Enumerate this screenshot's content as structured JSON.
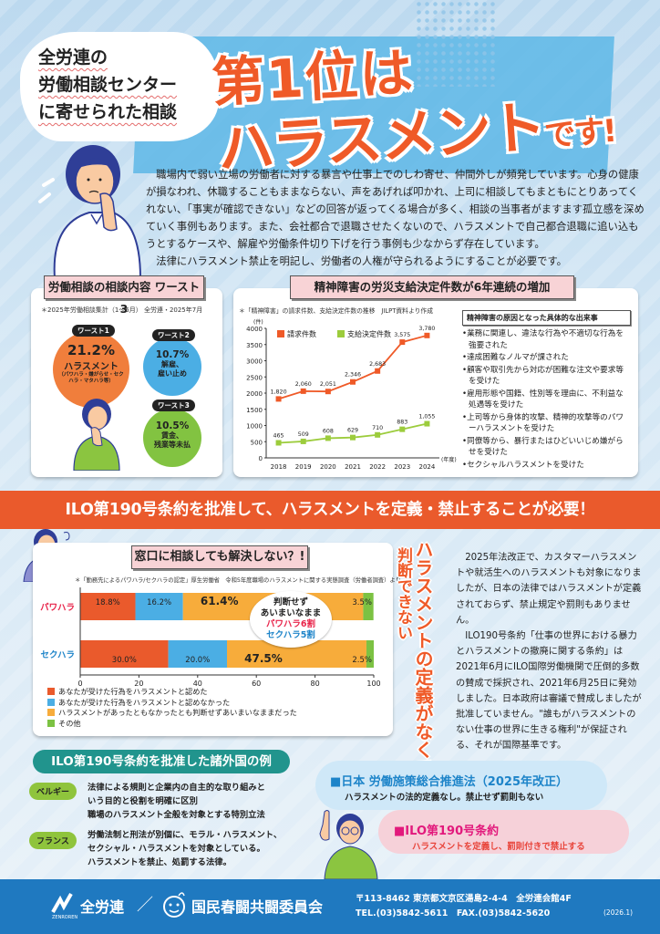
{
  "header": {
    "bubble_lines": [
      "全労連の",
      "労働相談センター",
      "に寄せられた相談"
    ],
    "title_line1": "第1位は",
    "title_line2_main": "ハラスメント",
    "title_line2_suffix": "です!"
  },
  "intro": {
    "paragraph1": "職場内で弱い立場の労働者に対する暴言や仕事上でのしわ寄せ、仲間外しが頻発しています。心身の健康が損なわれ、休職することもままならない、声をあげれば叩かれ、上司に相談してもまともにとりあってくれない、「事実が確認できない」などの回答が返ってくる場合が多く、相談の当事者がますます孤立感を深めていく事例もあります。また、会社都合で退職させたくないので、ハラスメントで自己都合退職に追い込もうとするケースや、解雇や労働条件切り下げを行う事例も少なからず存在しています。",
    "paragraph2": "法律にハラスメント禁止を明記し、労働者の人権が守られるようにすることが必要です。"
  },
  "worst3": {
    "title": "労働相談の相談内容 ワースト3",
    "note": "＊2025年労働相談集計（1〜6月） 全労連・2025年7月",
    "items": [
      {
        "badge": "ワースト1",
        "pct": "21.2%",
        "label": "ハラスメント",
        "detail": "（パワハラ・嫌がらせ・セクハラ・マタハラ等）",
        "color": "#f07e3c"
      },
      {
        "badge": "ワースト2",
        "pct": "10.7%",
        "label": "解雇、",
        "detail": "雇い止め",
        "color": "#4baee4"
      },
      {
        "badge": "ワースト3",
        "pct": "10.5%",
        "label": "賃金、",
        "detail": "残業等未払",
        "color": "#82c341"
      }
    ]
  },
  "mental": {
    "title": "精神障害の労災支給決定件数が6年連続の増加",
    "note": "＊「精神障害」の請求件数、支給決定件数の推移　JILPT資料より作成",
    "causes_title": "精神障害の原因となった具体的な出来事",
    "causes": [
      "•業務に関連し、違法な行為や不適切な行為を強要された",
      "•達成困難なノルマが課された",
      "•顧客や取引先から対応が困難な注文や要求等を受けた",
      "•雇用形態や国籍、性別等を理由に、不利益な処遇等を受けた",
      "•上司等から身体的攻撃、精神的攻撃等のパワーハラスメントを受けた",
      "•同僚等から、暴行またはひどいいじめ嫌がらせを受けた",
      "•セクシャルハラスメントを受けた"
    ]
  },
  "chart_data": [
    {
      "type": "line",
      "title": "精神障害の労災支給決定件数が6年連続の増加",
      "x": [
        "2018",
        "2019",
        "2020",
        "2021",
        "2022",
        "2023",
        "2024"
      ],
      "xlabel": "(年度)",
      "ylabel": "(件)",
      "ylim": [
        0,
        4000
      ],
      "yticks": [
        0,
        500,
        1000,
        1500,
        2000,
        2500,
        3000,
        3500,
        4000
      ],
      "grid": false,
      "legend_position": "top-left",
      "series": [
        {
          "name": "請求件数",
          "color": "#ef5a28",
          "values": [
            1820,
            2060,
            2051,
            2346,
            2683,
            3575,
            3780
          ],
          "labels": [
            "1,820",
            "2,060",
            "2,051",
            "2,346",
            "2,683",
            "3,575",
            "3,780"
          ]
        },
        {
          "name": "支給決定件数",
          "color": "#9ccc3c",
          "values": [
            465,
            509,
            608,
            629,
            710,
            883,
            1055
          ],
          "labels": [
            "465",
            "509",
            "608",
            "629",
            "710",
            "883",
            "1,055"
          ]
        }
      ]
    },
    {
      "type": "bar",
      "orientation": "horizontal-stacked",
      "title": "窓口に相談しても解決しない？!",
      "categories": [
        "パワハラ",
        "セクハラ"
      ],
      "xlim": [
        0,
        100
      ],
      "xticks": [
        0,
        20,
        40,
        60,
        80,
        100
      ],
      "legend_position": "bottom",
      "series": [
        {
          "name": "あなたが受けた行為をハラスメントと認めた",
          "color": "#f07e3c",
          "values": [
            18.8,
            30.0
          ]
        },
        {
          "name": "あなたが受けた行為をハラスメントと認めなかった",
          "color": "#4baee4",
          "values": [
            16.2,
            20.0
          ]
        },
        {
          "name": "ハラスメントがあったともなかったとも判断せずあいまいなままだった",
          "color": "#f7ac3b",
          "values": [
            61.4,
            47.5
          ]
        },
        {
          "name": "その他",
          "color": "#7cc243",
          "values": [
            3.5,
            2.5
          ]
        }
      ]
    }
  ],
  "banner": {
    "text": "ILO第190号条約を批准して、ハラスメントを定義・禁止することが必要！"
  },
  "consult": {
    "title": "窓口に相談しても解決しない？!",
    "note": "＊「勤務先によるパワハラ/セクハラの認定」厚生労働省　令和5年度職場のハラスメントに関する実態調査（労働者調査）より",
    "row_labels": [
      "パワハラ",
      "セクハラ"
    ],
    "bar_labels": [
      [
        "18.8%",
        "16.2%",
        "61.4%",
        "3.5%"
      ],
      [
        "30.0%",
        "20.0%",
        "47.5%",
        "2.5%"
      ]
    ],
    "axis": [
      "0",
      "20",
      "40",
      "60",
      "80",
      "100"
    ],
    "thought_lines": [
      "判断せず",
      "あいまいなまま",
      "パワハラ6割",
      "セクハラ5割"
    ],
    "legend": [
      "あなたが受けた行為をハラスメントと認めた",
      "あなたが受けた行為をハラスメントと認めなかった",
      "ハラスメントがあったともなかったとも判断せずあいまいなままだった",
      "その他"
    ],
    "vertical_main": "ハラスメントの定義がなくて",
    "vertical_sub": "判断できない"
  },
  "law_text": {
    "paragraph1": "2025年法改正で、カスタマーハラスメントや就活生へのハラスメントも対象になりましたが、日本の法律ではハラスメントが定義されておらず、禁止規定や罰則もありません。",
    "paragraph2": "ILO190号条約「仕事の世界における暴力とハラスメントの撤廃に関する条約」は2021年6月にILO国際労働機関で圧倒的多数の賛成で採択され、2021年6月25日に発効しました。日本政府は審議で賛成しましたが批准していません。\"誰もがハラスメントのない仕事の世界に生きる権利\"が保証される、それが国際基準です。"
  },
  "countries": {
    "title": "ILO第190号条約を批准した諸外国の例",
    "items": [
      {
        "name": "ベルギー",
        "lines": [
          "法律による規則と企業内の自主的な取り組みと",
          "いう目的と役割を明確に区別",
          "職場のハラスメント全般を対象とする特別立法"
        ]
      },
      {
        "name": "フランス",
        "lines": [
          "労働法制と刑法が別個に、モラル・ハラスメント、",
          "セクシャル・ハラスメントを対象としている。",
          "ハラスメントを禁止、処罰する法律。"
        ]
      }
    ]
  },
  "compare": {
    "japan_title": "■日本 労働施策総合推進法（2025年改正）",
    "japan_sub": "ハラスメントの法的定義なし。禁止せず罰則もない",
    "ilo_title": "■ILO第190号条約",
    "ilo_sub": "ハラスメントを定義し、罰則付きで禁止する"
  },
  "footer": {
    "org1": "全労連",
    "logo1_caption": "ZENROREN",
    "slash": "／",
    "org2": "国民春闘共闘委員会",
    "address": "〒113-8462 東京都文京区湯島2-4-4　全労連会館4F",
    "tel": "TEL.(03)5842-5611　FAX.(03)5842-5620",
    "date": "(2026.1)"
  }
}
